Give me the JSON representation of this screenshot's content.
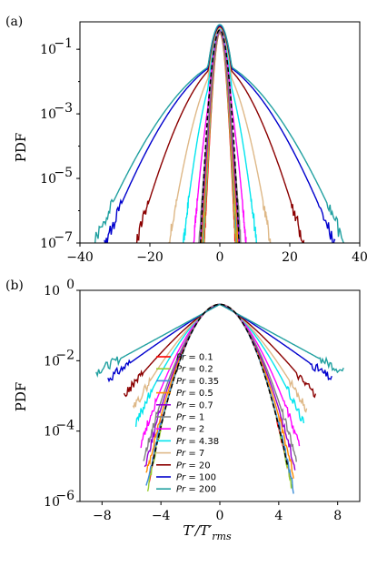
{
  "chart_data": [
    {
      "type": "line",
      "panel_label": "(a)",
      "ylabel": "PDF",
      "xlabel": "",
      "yscale": "log",
      "xlim": [
        -40,
        40
      ],
      "ylim_exp": [
        -7,
        0
      ],
      "x_ticks": [
        -40,
        -20,
        0,
        20,
        40
      ],
      "x_tick_labels": [
        "−40",
        "−20",
        "0",
        "20",
        "40"
      ],
      "y_ticks_exp": [
        -7,
        -5,
        -3,
        -1
      ],
      "series": [
        {
          "pr": 0.1,
          "color": "#ff0000",
          "tail_scale": 1.1,
          "tail_power": 2.0,
          "extent": 4.5,
          "amp": 0.32
        },
        {
          "pr": 0.2,
          "color": "#9acd32",
          "tail_scale": 1.15,
          "tail_power": 2.0,
          "extent": 4.7,
          "amp": 0.33
        },
        {
          "pr": 0.35,
          "color": "#3d8fd9",
          "tail_scale": 1.2,
          "tail_power": 1.9,
          "extent": 5.0,
          "amp": 0.34
        },
        {
          "pr": 0.5,
          "color": "#ff8c00",
          "tail_scale": 1.3,
          "tail_power": 1.8,
          "extent": 5.2,
          "amp": 0.35
        },
        {
          "pr": 0.7,
          "color": "#9400d3",
          "tail_scale": 1.4,
          "tail_power": 1.7,
          "extent": 5.6,
          "amp": 0.36
        },
        {
          "pr": 1,
          "color": "#808080",
          "tail_scale": 1.5,
          "tail_power": 1.6,
          "extent": 6.0,
          "amp": 0.37
        },
        {
          "pr": 2,
          "color": "#ff00ff",
          "tail_scale": 1.7,
          "tail_power": 1.4,
          "extent": 7.5,
          "amp": 0.4
        },
        {
          "pr": 4.38,
          "color": "#00e5ee",
          "tail_scale": 2.0,
          "tail_power": 1.25,
          "extent": 10.5,
          "amp": 0.42
        },
        {
          "pr": 7,
          "color": "#deb887",
          "tail_scale": 2.3,
          "tail_power": 1.15,
          "extent": 14.5,
          "amp": 0.45
        },
        {
          "pr": 20,
          "color": "#8b0000",
          "tail_scale": 2.8,
          "tail_power": 1.0,
          "extent": 24,
          "amp": 0.5
        },
        {
          "pr": 100,
          "color": "#0000cd",
          "tail_scale": 3.7,
          "tail_power": 0.85,
          "extent": 33,
          "amp": 0.55
        },
        {
          "pr": 200,
          "color": "#20a0a0",
          "tail_scale": 4.1,
          "tail_power": 0.82,
          "extent": 36,
          "amp": 0.58
        }
      ],
      "gaussian": {
        "style": "dashed",
        "color": "#000000"
      }
    },
    {
      "type": "line",
      "panel_label": "(b)",
      "ylabel": "PDF",
      "xlabel": "T′/T′rms",
      "yscale": "log",
      "xlim": [
        -9.5,
        9.5
      ],
      "ylim_exp": [
        -6,
        0
      ],
      "x_ticks": [
        -8,
        -4,
        0,
        4,
        8
      ],
      "x_tick_labels": [
        "−8",
        "−4",
        "0",
        "4",
        "8"
      ],
      "y_ticks_exp": [
        -6,
        -4,
        -2,
        0
      ],
      "legend": [
        "Pr = 0.1",
        "Pr = 0.2",
        "Pr = 0.35",
        "Pr = 0.5",
        "Pr = 0.7",
        "Pr = 1",
        "Pr = 2",
        "Pr = 4.38",
        "Pr = 7",
        "Pr = 20",
        "Pr = 100",
        "Pr = 200"
      ],
      "legend_position": "center-bottom"
    }
  ],
  "text": {
    "panel_a_label": "(a)",
    "panel_b_label": "(b)",
    "ylabel_a": "PDF",
    "ylabel_b": "PDF",
    "xlabel_b_main": "T′/T′",
    "xlabel_b_sub": "rms",
    "axis_a_x_ticks": [
      "−40",
      "−20",
      "0",
      "20",
      "40"
    ],
    "axis_a_y_ticks": [
      "10",
      "10",
      "10",
      "10"
    ],
    "axis_a_y_exps": [
      "−7",
      "−5",
      "−3",
      "−1"
    ],
    "axis_b_x_ticks": [
      "−8",
      "−4",
      "0",
      "4",
      "8"
    ],
    "axis_b_y_ticks": [
      "10",
      "10",
      "10",
      "10"
    ],
    "axis_b_y_exps": [
      "−6",
      "−4",
      "−2",
      "0"
    ],
    "legend": [
      {
        "pr_symbol": "Pr",
        "value": " = 0.1"
      },
      {
        "pr_symbol": "Pr",
        "value": " = 0.2"
      },
      {
        "pr_symbol": "Pr",
        "value": " = 0.35"
      },
      {
        "pr_symbol": "Pr",
        "value": " = 0.5"
      },
      {
        "pr_symbol": "Pr",
        "value": " = 0.7"
      },
      {
        "pr_symbol": "Pr",
        "value": " = 1"
      },
      {
        "pr_symbol": "Pr",
        "value": " = 2"
      },
      {
        "pr_symbol": "Pr",
        "value": " = 4.38"
      },
      {
        "pr_symbol": "Pr",
        "value": " = 7"
      },
      {
        "pr_symbol": "Pr",
        "value": " = 20"
      },
      {
        "pr_symbol": "Pr",
        "value": " = 100"
      },
      {
        "pr_symbol": "Pr",
        "value": " = 200"
      }
    ]
  }
}
